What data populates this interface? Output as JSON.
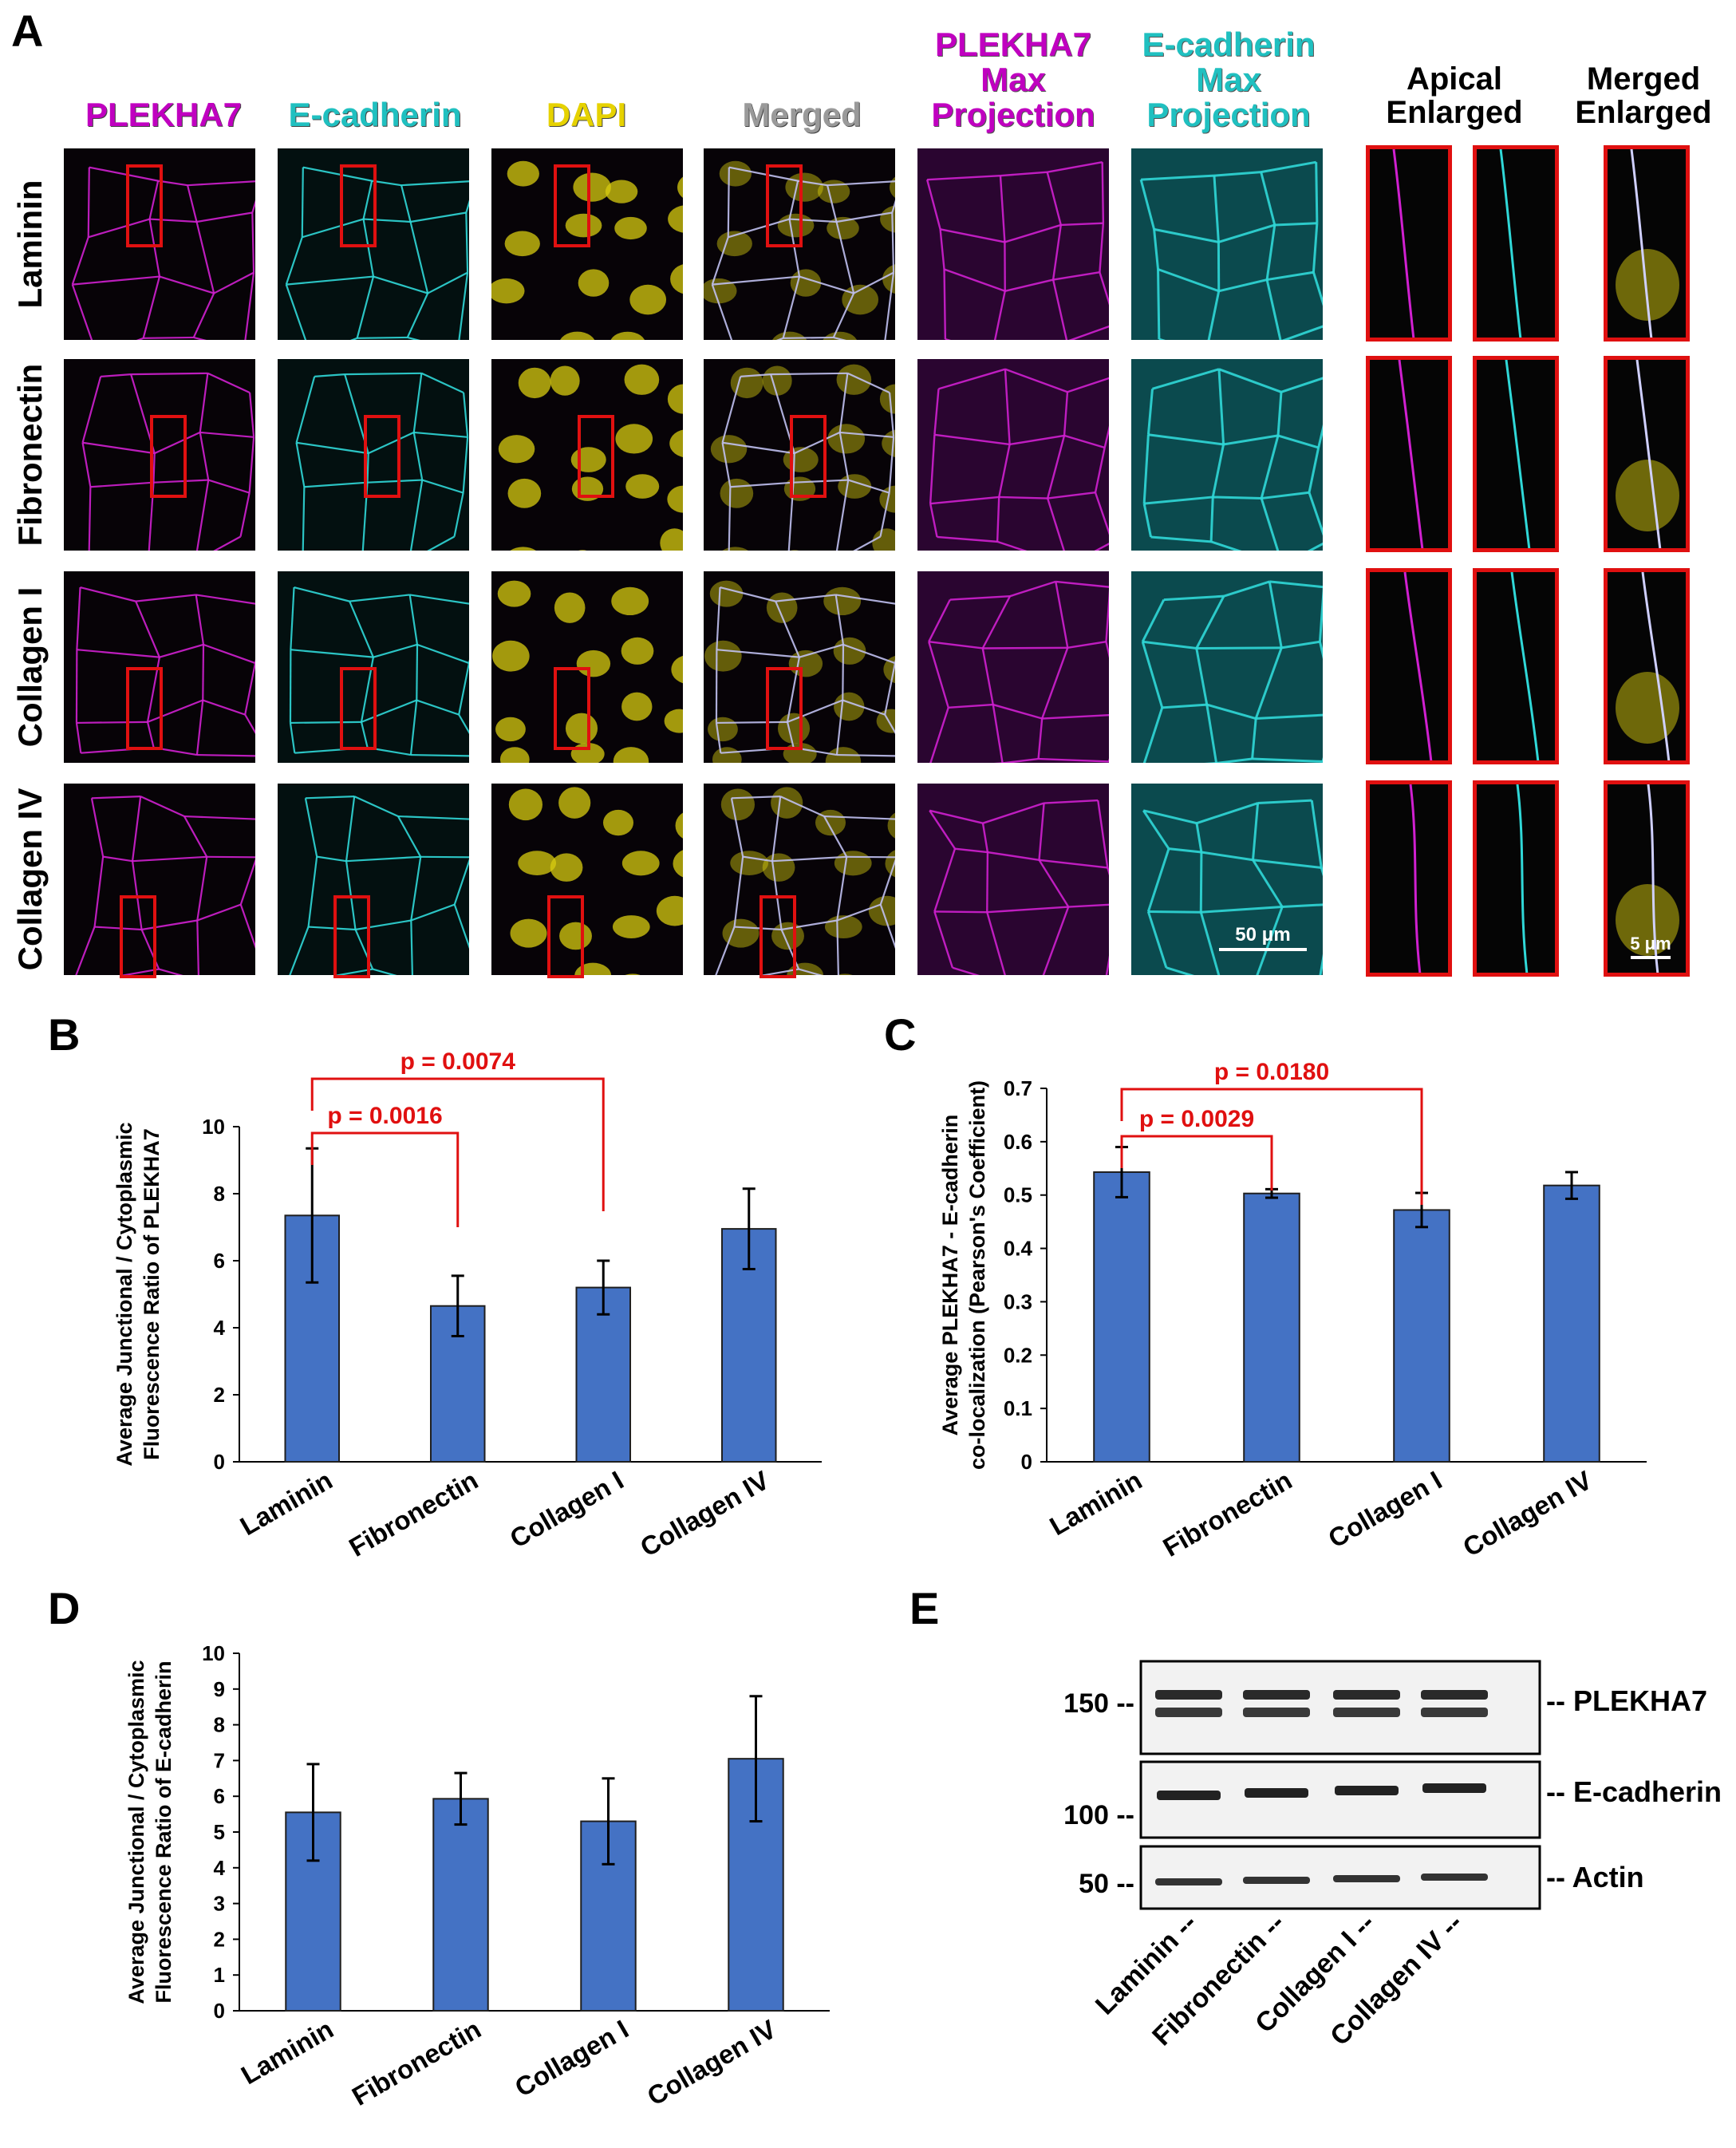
{
  "panels": {
    "A": "A",
    "B": "B",
    "C": "C",
    "D": "D",
    "E": "E"
  },
  "panelA": {
    "columns": [
      {
        "lines": [
          "PLEKHA7"
        ],
        "color": "#c000c0"
      },
      {
        "lines": [
          "E-cadherin"
        ],
        "color": "#20c0c0"
      },
      {
        "lines": [
          "DAPI"
        ],
        "color": "#e6d200"
      },
      {
        "lines": [
          "Merged"
        ],
        "color": "#9a9a9a"
      },
      {
        "lines": [
          "PLEKHA7",
          "Max",
          "Projection"
        ],
        "color": "#c000c0"
      },
      {
        "lines": [
          "E-cadherin",
          "Max",
          "Projection"
        ],
        "color": "#20c0c0"
      },
      {
        "lines": [
          "Apical",
          "Enlarged"
        ],
        "color": "#000000"
      },
      {
        "lines": [
          "Merged",
          "Enlarged"
        ],
        "color": "#000000"
      }
    ],
    "rows": [
      "Laminin",
      "Fibronectin",
      "Collagen I",
      "Collagen IV"
    ],
    "scalebar_main": "50 μm",
    "scalebar_enlarged": "5 μm",
    "channel_colors": {
      "plekha7": "#d020d0",
      "ecadherin": "#30d8d8",
      "dapi": "#d8cc10",
      "redbox": "#e01010"
    }
  },
  "chartB": {
    "chart_data": {
      "type": "bar",
      "categories": [
        "Laminin",
        "Fibronectin",
        "Collagen I",
        "Collagen IV"
      ],
      "values": [
        7.35,
        4.65,
        5.2,
        6.95
      ],
      "errors": [
        2.0,
        0.9,
        0.8,
        1.2
      ],
      "ylabel_lines": [
        "Average Junctional / Cytoplasmic",
        "Fluorescence Ratio of PLEKHA7"
      ],
      "ylim": [
        0,
        10
      ],
      "yticks": [
        "0",
        "2",
        "4",
        "6",
        "8",
        "10"
      ],
      "bar_color": "#4472c4",
      "significance": [
        {
          "from": "Laminin",
          "to": "Fibronectin",
          "label": "p = 0.0016"
        },
        {
          "from": "Laminin",
          "to": "Collagen I",
          "label": "p = 0.0074"
        }
      ]
    }
  },
  "chartC": {
    "chart_data": {
      "type": "bar",
      "categories": [
        "Laminin",
        "Fibronectin",
        "Collagen I",
        "Collagen IV"
      ],
      "values": [
        0.543,
        0.503,
        0.472,
        0.518
      ],
      "errors": [
        0.047,
        0.008,
        0.032,
        0.025
      ],
      "ylabel_lines": [
        "Average PLEKHA7 - E-cadherin",
        "co-localization (Pearson's Coefficient)"
      ],
      "ylim": [
        0,
        0.7
      ],
      "yticks": [
        "0",
        "0.1",
        "0.2",
        "0.3",
        "0.4",
        "0.5",
        "0.6",
        "0.7"
      ],
      "bar_color": "#4472c4",
      "significance": [
        {
          "from": "Laminin",
          "to": "Fibronectin",
          "label": "p = 0.0029"
        },
        {
          "from": "Laminin",
          "to": "Collagen I",
          "label": "p = 0.0180"
        }
      ]
    }
  },
  "chartD": {
    "chart_data": {
      "type": "bar",
      "categories": [
        "Laminin",
        "Fibronectin",
        "Collagen I",
        "Collagen IV"
      ],
      "values": [
        5.55,
        5.93,
        5.3,
        7.05
      ],
      "errors": [
        1.35,
        0.72,
        1.2,
        1.75
      ],
      "ylabel_lines": [
        "Average Junctional / Cytoplasmic",
        "Fluorescence Ratio of E-cadherin"
      ],
      "ylim": [
        0,
        10
      ],
      "yticks": [
        "0",
        "1",
        "2",
        "3",
        "4",
        "5",
        "6",
        "7",
        "8",
        "9",
        "10"
      ],
      "bar_color": "#4472c4",
      "significance": []
    }
  },
  "panelE": {
    "markers": [
      "150 --",
      "100 --",
      "50 --"
    ],
    "proteins": [
      "-- PLEKHA7",
      "-- E-cadherin",
      "-- Actin"
    ],
    "lanes": [
      "Laminin --",
      "Fibronectin --",
      "Collagen I --",
      "Collagen IV --"
    ]
  }
}
